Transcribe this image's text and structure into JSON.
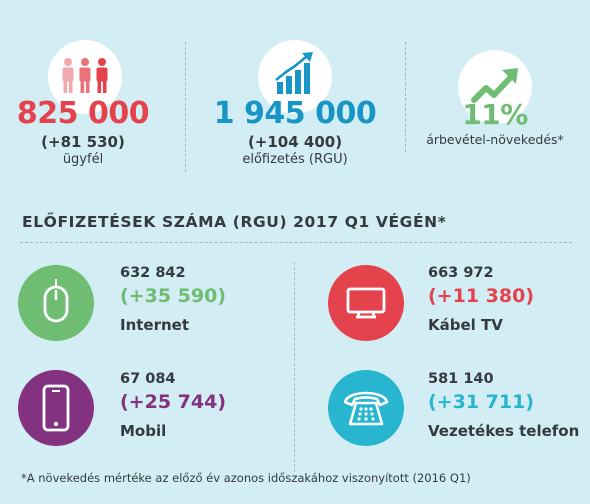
{
  "colors": {
    "background": "#d3edf4",
    "red": "#e4434d",
    "blue": "#1795c6",
    "green": "#6fbd72",
    "purple": "#82327f",
    "cyan": "#27b5cf",
    "text": "#333a40"
  },
  "stats": [
    {
      "icon": "people-icon",
      "value": "825 000",
      "delta": "(+81 530)",
      "label": "ügyfél"
    },
    {
      "icon": "bar-chart-growth-icon",
      "value": "1 945 000",
      "delta": "(+104 400)",
      "label": "előfizetés (RGU)"
    },
    {
      "icon": "trend-arrow-icon",
      "value": "11%",
      "label": "árbevétel-növekedés*"
    }
  ],
  "section_title": "ELŐFIZETÉSEK SZÁMA (RGU) 2017 Q1 VÉGÉN*",
  "services": [
    {
      "icon": "mouse-icon",
      "count": "632 842",
      "delta": "(+35 590)",
      "name": "Internet"
    },
    {
      "icon": "tv-icon",
      "count": "663 972",
      "delta": "(+11 380)",
      "name": "Kábel TV"
    },
    {
      "icon": "smartphone-icon",
      "count": "67 084",
      "delta": "(+25 744)",
      "name": "Mobil"
    },
    {
      "icon": "telephone-icon",
      "count": "581 140",
      "delta": "(+31 711)",
      "name": "Vezetékes telefon"
    }
  ],
  "footnote": "*A növekedés mértéke az előző év azonos időszakához viszonyított (2016 Q1)"
}
